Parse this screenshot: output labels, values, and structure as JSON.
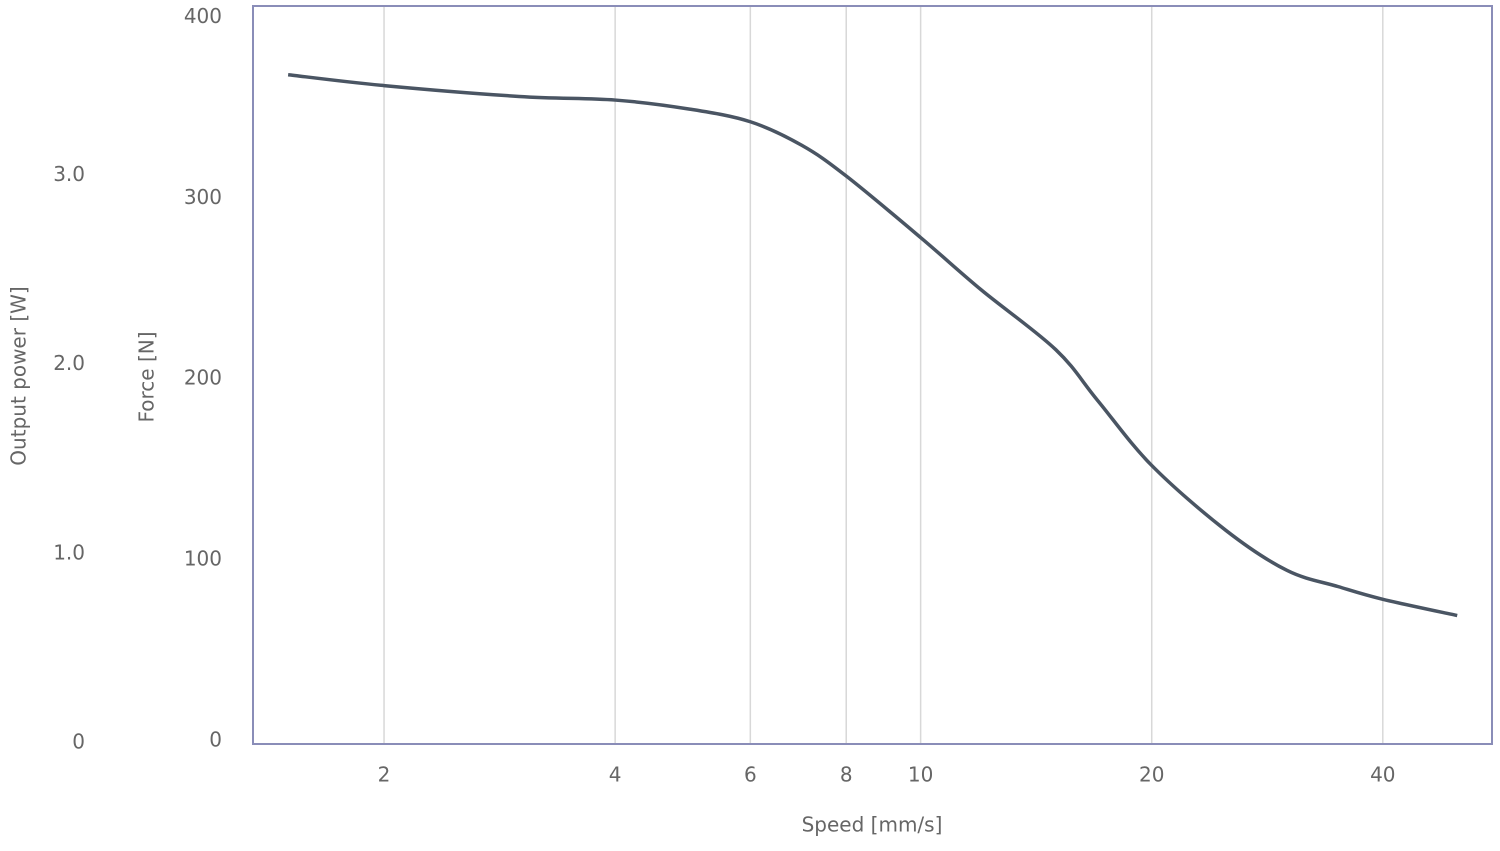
{
  "chart_data": {
    "type": "line",
    "x_label": "Speed [mm/s]",
    "y_label": "Force [N]",
    "y2_label": "Output power [W]",
    "x_scale": "log",
    "xlim": [
      1.35,
      55.5
    ],
    "xticks": [
      2,
      4,
      6,
      8,
      10,
      20,
      40
    ],
    "ylim": [
      0,
      408
    ],
    "yticks": [
      0,
      100,
      200,
      300,
      400
    ],
    "y2lim": [
      0,
      3.9
    ],
    "y2ticks": [
      0,
      {
        "value": 1,
        "label": "1.0"
      },
      {
        "value": 2,
        "label": "2.0"
      },
      {
        "value": 3,
        "label": "3.0"
      }
    ],
    "grid": true,
    "series": [
      {
        "name": "Force",
        "color": "#4a5563",
        "x": [
          1.5,
          2,
          3,
          4,
          5,
          6,
          7,
          8,
          10,
          12,
          15,
          17,
          20,
          25,
          30,
          35,
          40,
          50
        ],
        "values": [
          370,
          364,
          358,
          356,
          351,
          344,
          331,
          314,
          280,
          251,
          218,
          190,
          154,
          118,
          96,
          87,
          80,
          71
        ]
      }
    ]
  }
}
